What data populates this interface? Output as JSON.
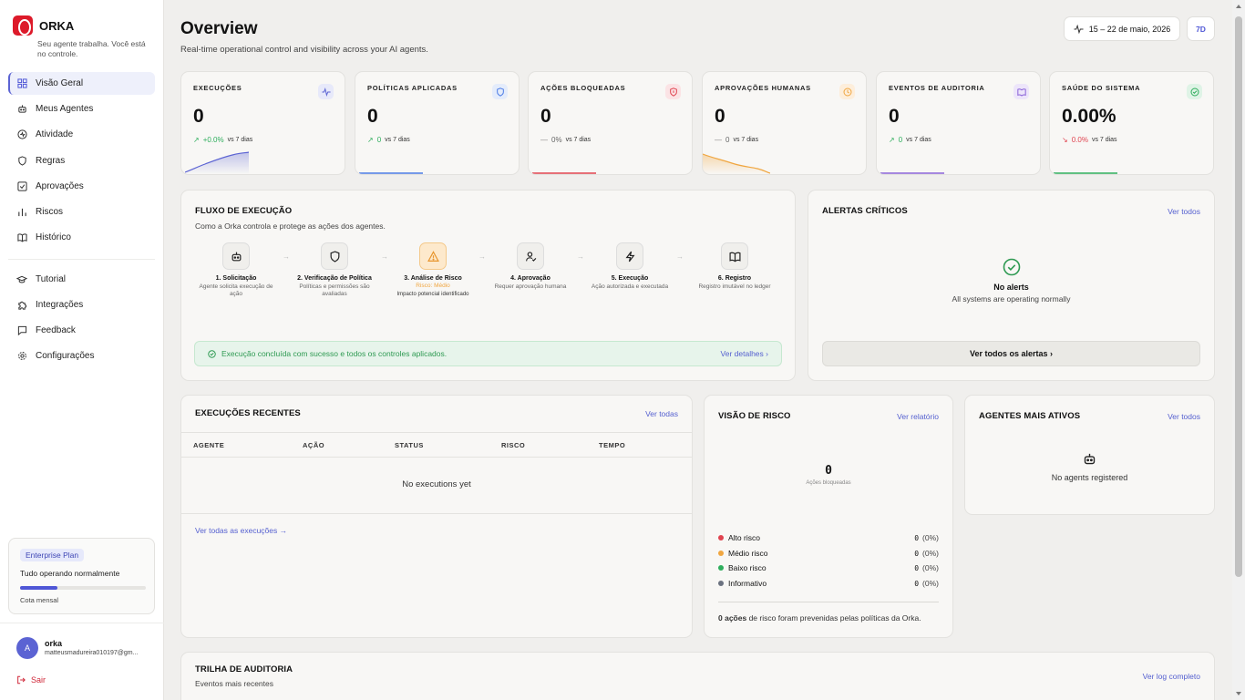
{
  "brand": {
    "name": "ORKA",
    "tagline": "Seu agente trabalha. Você está no controle."
  },
  "nav": {
    "primary": [
      {
        "label": "Visão Geral",
        "icon": "grid-icon",
        "active": true
      },
      {
        "label": "Meus Agentes",
        "icon": "robot-icon"
      },
      {
        "label": "Atividade",
        "icon": "activity-icon"
      },
      {
        "label": "Regras",
        "icon": "shield-icon"
      },
      {
        "label": "Aprovações",
        "icon": "checkbox-icon"
      },
      {
        "label": "Riscos",
        "icon": "bar-chart-icon"
      },
      {
        "label": "Histórico",
        "icon": "book-icon"
      }
    ],
    "secondary": [
      {
        "label": "Tutorial",
        "icon": "graduation-cap-icon"
      },
      {
        "label": "Integrações",
        "icon": "puzzle-icon"
      },
      {
        "label": "Feedback",
        "icon": "message-icon"
      },
      {
        "label": "Configurações",
        "icon": "gear-icon"
      }
    ]
  },
  "plan": {
    "badge": "Enterprise Plan",
    "status": "Tudo operando normalmente",
    "quota_label": "Cota mensal",
    "quota_fraction": 0.3
  },
  "user": {
    "initial": "A",
    "name": "orka",
    "email": "matteusmadureira010197@gm..."
  },
  "logout": {
    "label": "Sair"
  },
  "header": {
    "title": "Overview",
    "subtitle": "Real-time operational control and visibility across your AI agents.",
    "date_range": "15 – 22 de maio, 2026",
    "period": "7D"
  },
  "kpis": [
    {
      "label": "EXECUÇÕES",
      "value": "0",
      "delta": "+0.0%",
      "vs": "vs 7 dias",
      "trend": "up",
      "color": "#5b63d3",
      "icon": "activity-icon"
    },
    {
      "label": "POLÍTICAS APLICADAS",
      "value": "0",
      "delta": "0",
      "vs": "vs 7 dias",
      "trend": "up",
      "color": "#4b7be5",
      "icon": "shield-icon"
    },
    {
      "label": "AÇÕES BLOQUEADAS",
      "value": "0",
      "delta": "0%",
      "vs": "vs 7 dias",
      "trend": "flat",
      "color": "#e0434f",
      "icon": "blocked-shield-icon"
    },
    {
      "label": "APROVAÇÕES HUMANAS",
      "value": "0",
      "delta": "0",
      "vs": "vs 7 dias",
      "trend": "flat",
      "color": "#f0a640",
      "icon": "clock-icon"
    },
    {
      "label": "EVENTOS DE AUDITORIA",
      "value": "0",
      "delta": "0",
      "vs": "vs 7 dias",
      "trend": "up",
      "color": "#8a63d8",
      "icon": "book-icon"
    },
    {
      "label": "SAÚDE DO SISTEMA",
      "value": "0.00%",
      "delta": "0.0%",
      "vs": "vs 7 dias",
      "trend": "down",
      "color": "#2eae5c",
      "icon": "check-circle-icon"
    }
  ],
  "flow": {
    "title": "FLUXO DE EXECUÇÃO",
    "subtitle": "Como a Orka controla e protege as ações dos agentes.",
    "steps": [
      {
        "name": "1. Solicitação",
        "desc": "Agente solicita execução de ação",
        "icon": "robot-icon"
      },
      {
        "name": "2. Verificação de Política",
        "desc": "Políticas e permissões são avaliadas",
        "icon": "shield-icon"
      },
      {
        "name": "3. Análise de Risco",
        "desc": "",
        "risk": "Risco: Médio",
        "impact": "Impacto potencial identificado",
        "icon": "warning-icon"
      },
      {
        "name": "4. Aprovação",
        "desc": "Requer aprovação humana",
        "icon": "user-check-icon"
      },
      {
        "name": "5. Execução",
        "desc": "Ação autorizada e executada",
        "icon": "bolt-icon"
      },
      {
        "name": "6. Registro",
        "desc": "Registro imutável no ledger",
        "icon": "book-icon"
      }
    ],
    "success_message": "Execução concluída com sucesso e todos os controles aplicados.",
    "details_link": "Ver detalhes"
  },
  "alerts": {
    "title": "ALERTAS CRÍTICOS",
    "link": "Ver todos",
    "empty_title": "No alerts",
    "empty_sub": "All systems are operating normally",
    "button": "Ver todos os alertas"
  },
  "recent": {
    "title": "EXECUÇÕES RECENTES",
    "link": "Ver todas",
    "columns": [
      "AGENTE",
      "AÇÃO",
      "STATUS",
      "RISCO",
      "TEMPO"
    ],
    "empty": "No executions yet",
    "footer_link": "Ver todas as execuções →"
  },
  "risk": {
    "title": "VISÃO DE RISCO",
    "link": "Ver relatório",
    "total": "0",
    "total_label": "Ações bloqueadas",
    "legend": [
      {
        "label": "Alto risco",
        "value": "0",
        "pct": "(0%)",
        "color": "#e0434f"
      },
      {
        "label": "Médio risco",
        "value": "0",
        "pct": "(0%)",
        "color": "#f0a640"
      },
      {
        "label": "Baixo risco",
        "value": "0",
        "pct": "(0%)",
        "color": "#2eae5c"
      },
      {
        "label": "Informativo",
        "value": "0",
        "pct": "(0%)",
        "color": "#6b7280"
      }
    ],
    "footer_bold": "0 ações",
    "footer_rest": "de risco foram prevenidas pelas políticas da Orka."
  },
  "agents": {
    "title": "AGENTES MAIS ATIVOS",
    "link": "Ver todos",
    "empty": "No agents registered"
  },
  "audit": {
    "title": "TRILHA DE AUDITORIA",
    "subtitle": "Eventos mais recentes",
    "link": "Ver log completo"
  }
}
